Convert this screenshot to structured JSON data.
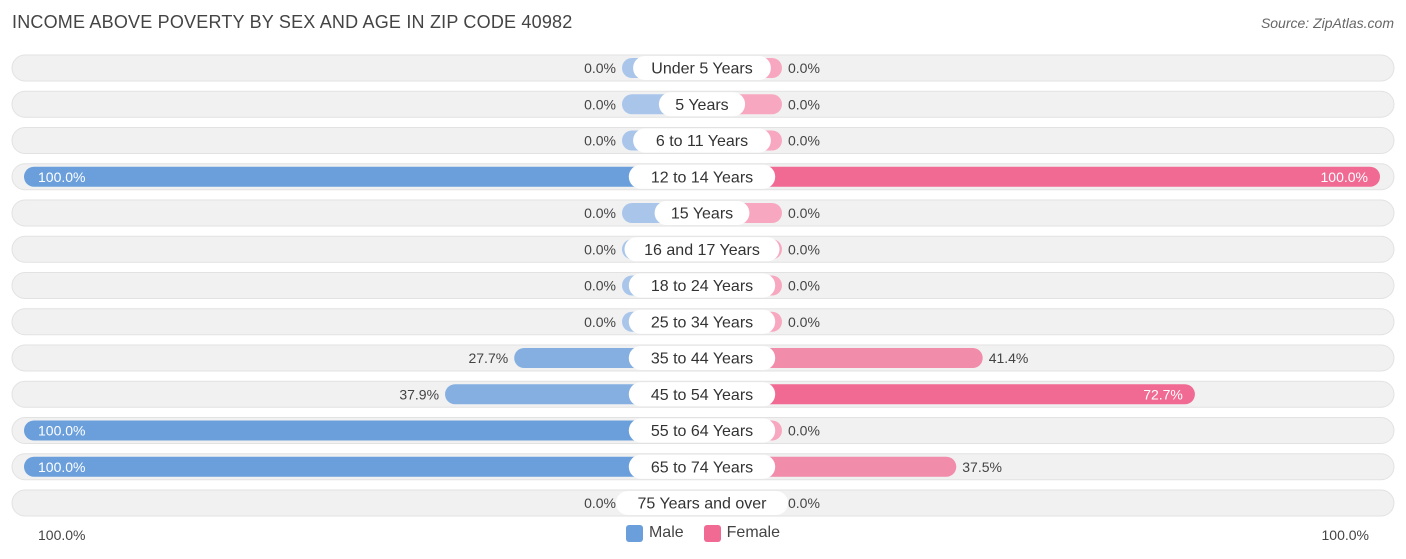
{
  "title": "INCOME ABOVE POVERTY BY SEX AND AGE IN ZIP CODE 40982",
  "source": "Source: ZipAtlas.com",
  "colors": {
    "male_full": "#6a9fdc",
    "male_light": "#a9c6ea",
    "female_full": "#f06a93",
    "female_light": "#f7a8c0",
    "track": "#f1f1f1"
  },
  "legend": {
    "male": "Male",
    "female": "Female"
  },
  "axis": {
    "left_label": "100.0%",
    "right_label": "100.0%"
  },
  "chart_data": {
    "type": "bar",
    "orientation": "horizontal-diverging",
    "xlim": [
      -100,
      100
    ],
    "categories": [
      "Under 5 Years",
      "5 Years",
      "6 to 11 Years",
      "12 to 14 Years",
      "15 Years",
      "16 and 17 Years",
      "18 to 24 Years",
      "25 to 34 Years",
      "35 to 44 Years",
      "45 to 54 Years",
      "55 to 64 Years",
      "65 to 74 Years",
      "75 Years and over"
    ],
    "series": [
      {
        "name": "Male",
        "values": [
          0.0,
          0.0,
          0.0,
          100.0,
          0.0,
          0.0,
          0.0,
          0.0,
          27.7,
          37.9,
          100.0,
          100.0,
          0.0
        ],
        "labels": [
          "0.0%",
          "0.0%",
          "0.0%",
          "100.0%",
          "0.0%",
          "0.0%",
          "0.0%",
          "0.0%",
          "27.7%",
          "37.9%",
          "100.0%",
          "100.0%",
          "0.0%"
        ]
      },
      {
        "name": "Female",
        "values": [
          0.0,
          0.0,
          0.0,
          100.0,
          0.0,
          0.0,
          0.0,
          0.0,
          41.4,
          72.7,
          0.0,
          37.5,
          0.0
        ],
        "labels": [
          "0.0%",
          "0.0%",
          "0.0%",
          "100.0%",
          "0.0%",
          "0.0%",
          "0.0%",
          "0.0%",
          "41.4%",
          "72.7%",
          "0.0%",
          "37.5%",
          "0.0%"
        ]
      }
    ]
  }
}
